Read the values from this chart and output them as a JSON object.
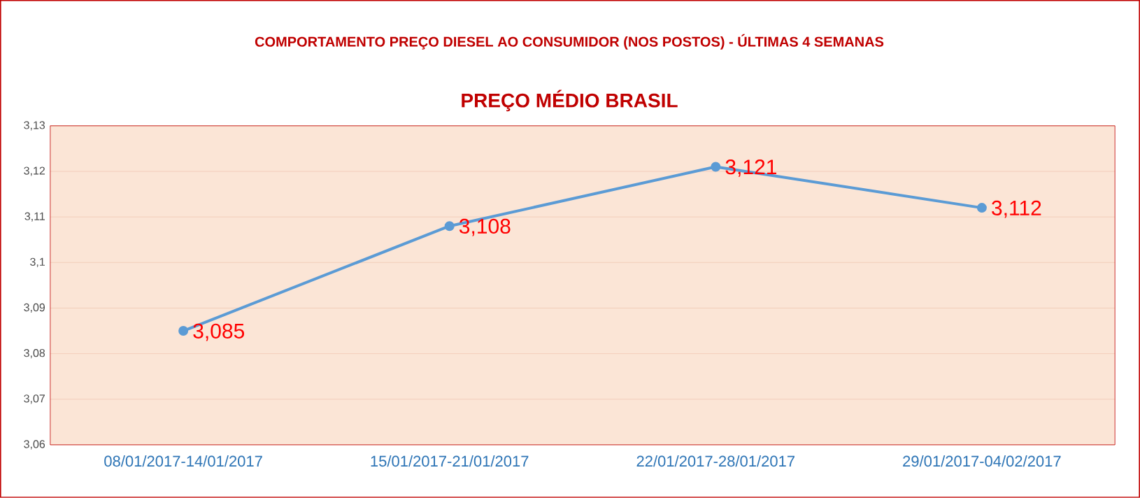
{
  "chart_data": {
    "type": "line",
    "title": "COMPORTAMENTO PREÇO DIESEL AO CONSUMIDOR (NOS POSTOS) - ÚLTIMAS 4 SEMANAS",
    "subtitle": "PREÇO MÉDIO BRASIL",
    "categories": [
      "08/01/2017-14/01/2017",
      "15/01/2017-21/01/2017",
      "22/01/2017-28/01/2017",
      "29/01/2017-04/02/2017"
    ],
    "series": [
      {
        "color": "#5b9bd5",
        "values": [
          3.085,
          3.108,
          3.121,
          3.112
        ]
      }
    ],
    "value_labels": [
      "3,085",
      "3,108",
      "3,121",
      "3,112"
    ],
    "ylim": [
      3.06,
      3.13
    ],
    "yticks": [
      {
        "value": 3.06,
        "label": "3,06"
      },
      {
        "value": 3.07,
        "label": "3,07"
      },
      {
        "value": 3.08,
        "label": "3,08"
      },
      {
        "value": 3.09,
        "label": "3,09"
      },
      {
        "value": 3.1,
        "label": "3,1"
      },
      {
        "value": 3.11,
        "label": "3,11"
      },
      {
        "value": 3.12,
        "label": "3,12"
      },
      {
        "value": 3.13,
        "label": "3,13"
      }
    ],
    "grid": "y",
    "marker": "circle",
    "line_style": "solid"
  }
}
